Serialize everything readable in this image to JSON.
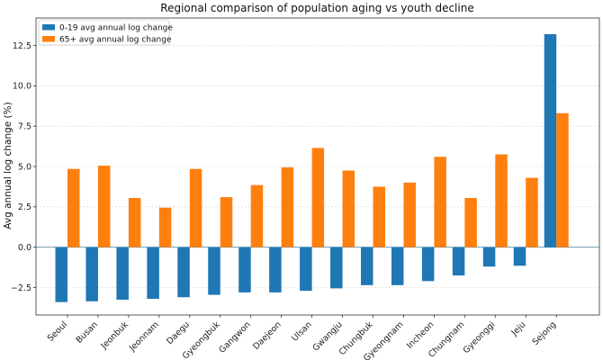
{
  "chart_data": {
    "type": "bar",
    "title": "Regional comparison of population aging vs youth decline",
    "xlabel": "",
    "ylabel": "Avg annual log change (%)",
    "ylim": [
      -4.2,
      14.2
    ],
    "yticks": [
      -2.5,
      0.0,
      2.5,
      5.0,
      7.5,
      10.0,
      12.5
    ],
    "ytick_labels": [
      "−2.5",
      "0.0",
      "2.5",
      "5.0",
      "7.5",
      "10.0",
      "12.5"
    ],
    "grid": true,
    "legend_position": "top-left",
    "categories": [
      "Seoul",
      "Busan",
      "Jeonbuk",
      "Jeonnam",
      "Daegu",
      "Gyeongbuk",
      "Gangwon",
      "Daejeon",
      "Ulsan",
      "Gwangju",
      "Chungbuk",
      "Gyeongnam",
      "Incheon",
      "Chungnam",
      "Gyeonggi",
      "Jeju",
      "Sejong"
    ],
    "series": [
      {
        "name": "0-19 avg annual log change",
        "color": "#1f77b4",
        "values": [
          -3.4,
          -3.35,
          -3.25,
          -3.2,
          -3.1,
          -2.95,
          -2.8,
          -2.8,
          -2.7,
          -2.55,
          -2.35,
          -2.35,
          -2.1,
          -1.75,
          -1.2,
          -1.15,
          13.2
        ]
      },
      {
        "name": "65+ avg annual log change",
        "color": "#ff7f0e",
        "values": [
          4.85,
          5.05,
          3.05,
          2.45,
          4.85,
          3.1,
          3.85,
          4.95,
          6.15,
          4.75,
          3.75,
          4.0,
          5.6,
          3.05,
          5.75,
          4.3,
          8.3
        ]
      }
    ]
  }
}
